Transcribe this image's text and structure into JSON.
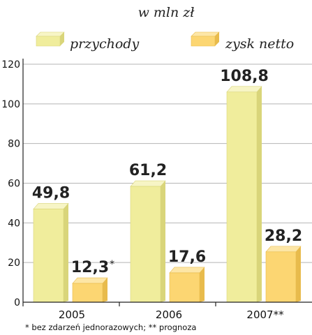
{
  "chart_data": {
    "type": "bar",
    "unit_label": "w mln zł",
    "categories": [
      "2005",
      "2006",
      "2007**"
    ],
    "series": [
      {
        "name": "przychody",
        "values": [
          49.8,
          61.2,
          108.8
        ],
        "labels": [
          "49,8",
          "61,2",
          "108,8"
        ],
        "color_front": "#f0ed9c",
        "color_top": "#f7f5c6",
        "color_side": "#d9d57a"
      },
      {
        "name": "zysk netto",
        "values": [
          12.3,
          17.6,
          28.2
        ],
        "labels": [
          "12,3",
          "17,6",
          "28,2"
        ],
        "label_marks": [
          "*",
          "",
          ""
        ],
        "color_front": "#fcd672",
        "color_top": "#fde6a6",
        "color_side": "#e8bb4c"
      }
    ],
    "ylim": [
      0,
      120
    ],
    "yticks": [
      0,
      20,
      40,
      60,
      80,
      100,
      120
    ],
    "ytick_labels": [
      "0",
      "20",
      "40",
      "60",
      "80",
      "100",
      "120"
    ],
    "grid": true,
    "legend_position": "top",
    "footnote": "* bez zdarzeń jednorazowych; ** prognoza"
  }
}
